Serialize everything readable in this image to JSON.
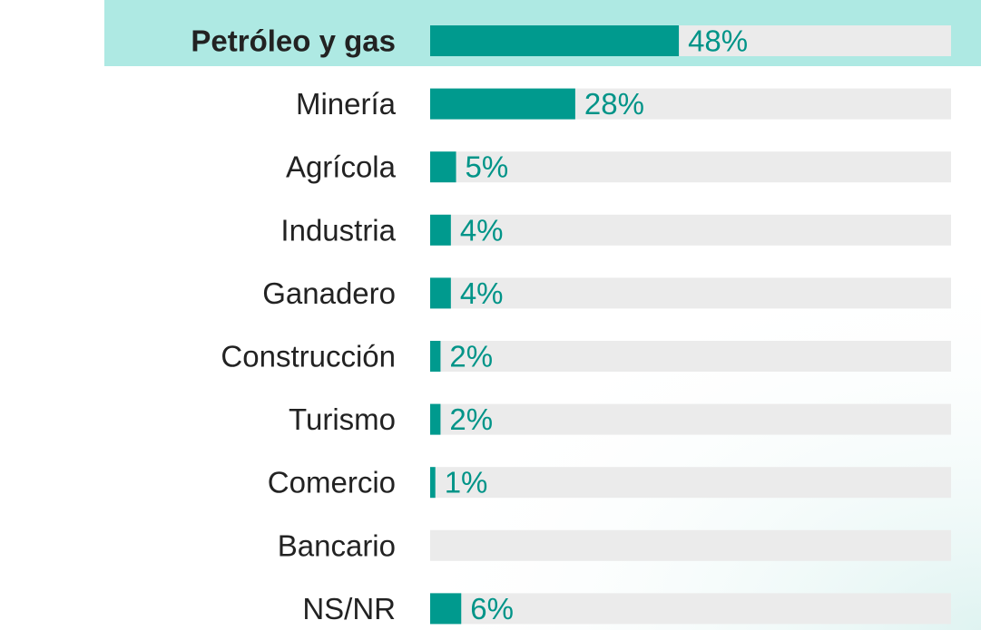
{
  "chart_data": {
    "type": "bar",
    "orientation": "horizontal",
    "categories": [
      "Petróleo y gas",
      "Minería",
      "Agrícola",
      "Industria",
      "Ganadero",
      "Construcción",
      "Turismo",
      "Comercio",
      "Bancario",
      "NS/NR"
    ],
    "values": [
      48,
      28,
      5,
      4,
      4,
      2,
      2,
      1,
      0,
      6
    ],
    "value_labels": [
      "48%",
      "28%",
      "5%",
      "4%",
      "4%",
      "2%",
      "2%",
      "1%",
      null,
      "6%"
    ],
    "color": "#009a8e",
    "track_color": "#ebebeb",
    "xlim": [
      0,
      100
    ]
  }
}
